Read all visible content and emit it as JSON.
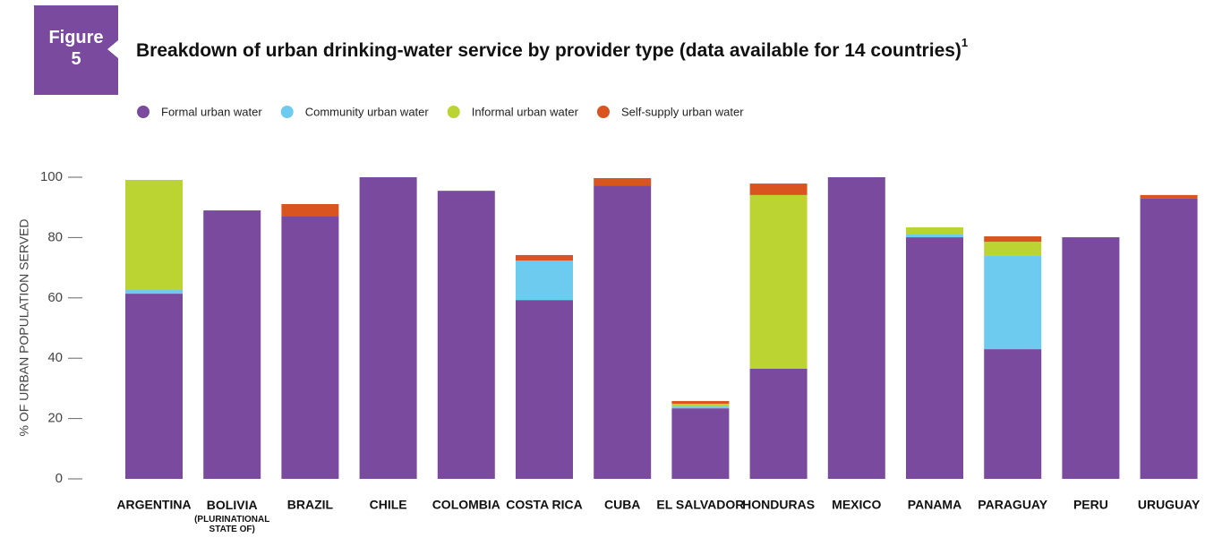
{
  "figure_label": "Figure 5",
  "chart_data": {
    "type": "stacked_bar",
    "title": "Breakdown of urban drinking-water service by provider type (data available for 14 countries)",
    "title_note": "1",
    "y_label": "% OF URBAN POPULATION SERVED",
    "categories": [
      "ARGENTINA",
      "BOLIVIA (PLURINATIONAL STATE OF)",
      "BRAZIL",
      "CHILE",
      "COLOMBIA",
      "COSTA RICA",
      "CUBA",
      "EL SALVADOR",
      "HONDURAS",
      "MEXICO",
      "PANAMA",
      "PARAGUAY",
      "PERU",
      "URUGUAY"
    ],
    "series": [
      {
        "name": "Formal urban water",
        "color": "#7a4a9e",
        "values": [
          61.4,
          89.0,
          87.2,
          100,
          95.5,
          59.3,
          97.3,
          23.4,
          36.5,
          100,
          80.1,
          43.0,
          80.1,
          92.9
        ]
      },
      {
        "name": "Community urban water",
        "color": "#6ccbef",
        "values": [
          1.2,
          0,
          0,
          0,
          0,
          13.1,
          0,
          0.6,
          0,
          0,
          0.9,
          30.9,
          0,
          0
        ]
      },
      {
        "name": "Informal urban water",
        "color": "#bcd431",
        "values": [
          36.5,
          0,
          0,
          0,
          0,
          0,
          0,
          0.9,
          57.6,
          0,
          2.4,
          4.7,
          0,
          0
        ]
      },
      {
        "name": "Self-supply urban water",
        "color": "#d9541e",
        "values": [
          0,
          0,
          3.9,
          0,
          0,
          1.8,
          2.4,
          0.9,
          3.8,
          0,
          0,
          1.8,
          0,
          1.2
        ]
      }
    ],
    "ylim": [
      0,
      100
    ],
    "yticks": [
      0,
      20,
      40,
      60,
      80,
      100
    ],
    "grid": false
  }
}
